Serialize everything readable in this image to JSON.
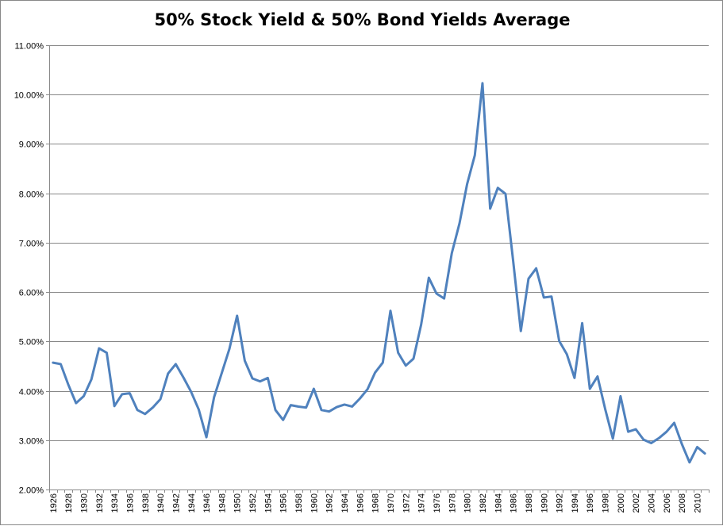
{
  "chart_data": {
    "type": "line",
    "title": "50% Stock Yield & 50% Bond Yields Average",
    "xlabel": "",
    "ylabel": "",
    "ylim": [
      0.02,
      0.11
    ],
    "y_ticks": [
      "2.00%",
      "3.00%",
      "4.00%",
      "5.00%",
      "6.00%",
      "7.00%",
      "8.00%",
      "9.00%",
      "10.00%",
      "11.00%"
    ],
    "x_tick_labels": [
      "1926",
      "1928",
      "1930",
      "1932",
      "1934",
      "1936",
      "1938",
      "1940",
      "1942",
      "1944",
      "1946",
      "1948",
      "1950",
      "1952",
      "1954",
      "1956",
      "1958",
      "1960",
      "1962",
      "1964",
      "1966",
      "1968",
      "1970",
      "1972",
      "1974",
      "1976",
      "1978",
      "1980",
      "1982",
      "1984",
      "1986",
      "1988",
      "1990",
      "1992",
      "1994",
      "1996",
      "1998",
      "2000",
      "2002",
      "2004",
      "2006",
      "2008",
      "2010"
    ],
    "grid": true,
    "legend": "none",
    "series_color": "#4F81BD",
    "series": [
      {
        "x": [
          1926,
          1927,
          1928,
          1929,
          1930,
          1931,
          1932,
          1933,
          1934,
          1935,
          1936,
          1937,
          1938,
          1939,
          1940,
          1941,
          1942,
          1943,
          1944,
          1945,
          1946,
          1947,
          1948,
          1949,
          1950,
          1951,
          1952,
          1953,
          1954,
          1955,
          1956,
          1957,
          1958,
          1959,
          1960,
          1961,
          1962,
          1963,
          1964,
          1965,
          1966,
          1967,
          1968,
          1969,
          1970,
          1971,
          1972,
          1973,
          1974,
          1975,
          1976,
          1977,
          1978,
          1979,
          1980,
          1981,
          1982,
          1983,
          1984,
          1985,
          1986,
          1987,
          1988,
          1989,
          1990,
          1991,
          1992,
          1993,
          1994,
          1995,
          1996,
          1997,
          1998,
          1999,
          2000,
          2001,
          2002,
          2003,
          2004,
          2005,
          2006,
          2007,
          2008,
          2009,
          2010,
          2011
        ],
        "values": [
          0.0457,
          0.0454,
          0.0412,
          0.0375,
          0.0389,
          0.0423,
          0.0486,
          0.0477,
          0.0369,
          0.0393,
          0.0395,
          0.0361,
          0.0353,
          0.0366,
          0.0383,
          0.0435,
          0.0454,
          0.0427,
          0.0398,
          0.0362,
          0.0306,
          0.0387,
          0.0436,
          0.0485,
          0.0552,
          0.0461,
          0.0425,
          0.0419,
          0.0426,
          0.0361,
          0.0341,
          0.0371,
          0.0368,
          0.0366,
          0.0404,
          0.0361,
          0.0358,
          0.0367,
          0.0372,
          0.0368,
          0.0384,
          0.0403,
          0.0437,
          0.0457,
          0.0562,
          0.0477,
          0.0451,
          0.0465,
          0.0534,
          0.0629,
          0.0597,
          0.0587,
          0.0679,
          0.0739,
          0.0819,
          0.0877,
          0.1023,
          0.0769,
          0.0811,
          0.0799,
          0.0663,
          0.0521,
          0.0627,
          0.0648,
          0.0589,
          0.0591,
          0.0501,
          0.0474,
          0.0426,
          0.0537,
          0.0404,
          0.0429,
          0.0363,
          0.0303,
          0.0389,
          0.0317,
          0.0322,
          0.0301,
          0.0294,
          0.0304,
          0.0317,
          0.0335,
          0.0292,
          0.0255,
          0.0286,
          0.0273
        ]
      }
    ]
  }
}
